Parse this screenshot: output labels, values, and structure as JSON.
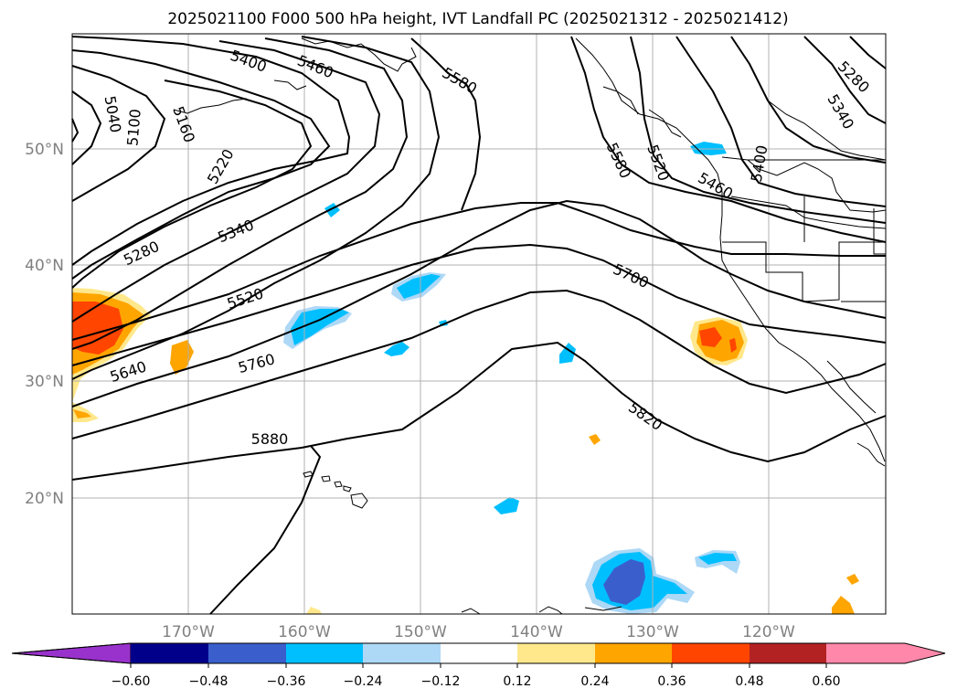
{
  "title": "2025021100 F000 500 hPa height, IVT Landfall PC (2025021312 - 2025021412)",
  "latitude_labels": [
    "50°N",
    "40°N",
    "30°N",
    "20°N"
  ],
  "longitude_labels": [
    "170°W",
    "160°W",
    "150°W",
    "140°W",
    "130°W",
    "120°W"
  ],
  "colorbar": {
    "ticks": [
      "−0.60",
      "−0.48",
      "−0.36",
      "−0.24",
      "−0.12",
      "0.12",
      "0.24",
      "0.36",
      "0.48",
      "0.60"
    ],
    "colors": [
      "#9932cc",
      "#00008b",
      "#3a5fcd",
      "#00bfff",
      "#add8f6",
      "#ffffff",
      "#ffe88c",
      "#ffa500",
      "#ff4500",
      "#b22222",
      "#ff88aa"
    ]
  },
  "contour_labels": [
    "5400",
    "5460",
    "5580",
    "5040",
    "5100",
    "5160",
    "5220",
    "5280",
    "5340",
    "5520",
    "5640",
    "5760",
    "5700",
    "5820",
    "5880",
    "5580",
    "5520",
    "5460",
    "5400",
    "5280",
    "5340"
  ],
  "colors": {
    "warm_shade": "#ffa500",
    "strong_warm": "#ff4500",
    "cool_shade": "#00bfff",
    "strong_cool": "#3a5fcd",
    "grid": "#b0b0b0"
  }
}
